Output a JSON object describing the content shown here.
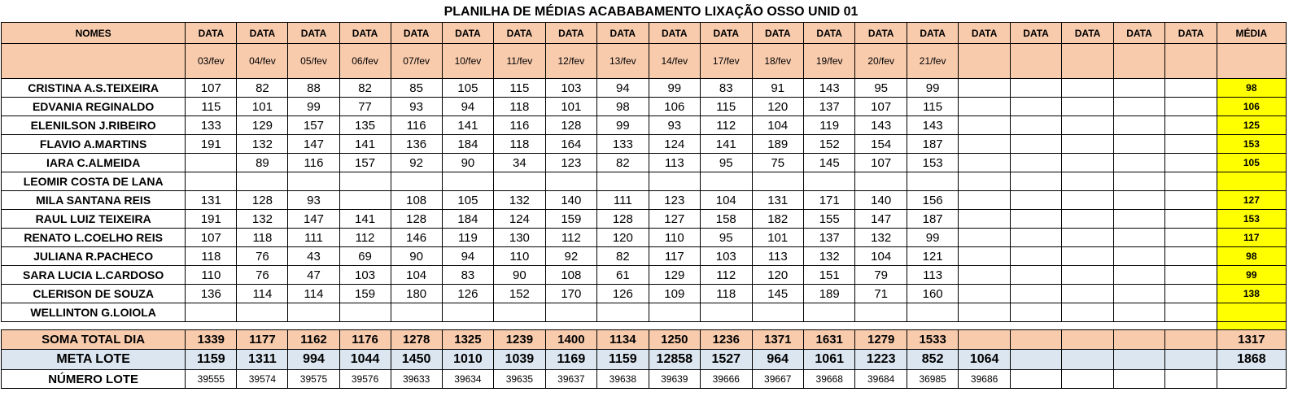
{
  "title": "PLANILHA DE MÉDIAS ACABABAMENTO LIXAÇÃO OSSO UNID 01",
  "header": {
    "names_label": "NOMES",
    "data_label": "DATA",
    "media_label": "MÉDIA",
    "dates": [
      "03/fev",
      "04/fev",
      "05/fev",
      "06/fev",
      "07/fev",
      "10/fev",
      "11/fev",
      "12/fev",
      "13/fev",
      "14/fev",
      "17/fev",
      "18/fev",
      "19/fev",
      "20/fev",
      "21/fev",
      "",
      "",
      "",
      "",
      ""
    ]
  },
  "rows": [
    {
      "name": "CRISTINA A.S.TEIXEIRA",
      "values": [
        "107",
        "82",
        "88",
        "82",
        "85",
        "105",
        "115",
        "103",
        "94",
        "99",
        "83",
        "91",
        "143",
        "95",
        "99",
        "",
        "",
        "",
        "",
        ""
      ],
      "avg": "98"
    },
    {
      "name": "EDVANIA REGINALDO",
      "values": [
        "115",
        "101",
        "99",
        "77",
        "93",
        "94",
        "118",
        "101",
        "98",
        "106",
        "115",
        "120",
        "137",
        "107",
        "115",
        "",
        "",
        "",
        "",
        ""
      ],
      "avg": "106"
    },
    {
      "name": "ELENILSON J.RIBEIRO",
      "values": [
        "133",
        "129",
        "157",
        "135",
        "116",
        "141",
        "116",
        "128",
        "99",
        "93",
        "112",
        "104",
        "119",
        "143",
        "143",
        "",
        "",
        "",
        "",
        ""
      ],
      "avg": "125"
    },
    {
      "name": "FLAVIO A.MARTINS",
      "values": [
        "191",
        "132",
        "147",
        "141",
        "136",
        "184",
        "118",
        "164",
        "133",
        "124",
        "141",
        "189",
        "152",
        "154",
        "187",
        "",
        "",
        "",
        "",
        ""
      ],
      "avg": "153"
    },
    {
      "name": "IARA C.ALMEIDA",
      "values": [
        "",
        "89",
        "116",
        "157",
        "92",
        "90",
        "34",
        "123",
        "82",
        "113",
        "95",
        "75",
        "145",
        "107",
        "153",
        "",
        "",
        "",
        "",
        ""
      ],
      "avg": "105"
    },
    {
      "name": "LEOMIR COSTA DE LANA",
      "values": [
        "",
        "",
        "",
        "",
        "",
        "",
        "",
        "",
        "",
        "",
        "",
        "",
        "",
        "",
        "",
        "",
        "",
        "",
        "",
        ""
      ],
      "avg": ""
    },
    {
      "name": "MILA SANTANA REIS",
      "values": [
        "131",
        "128",
        "93",
        "",
        "108",
        "105",
        "132",
        "140",
        "111",
        "123",
        "104",
        "131",
        "171",
        "140",
        "156",
        "",
        "",
        "",
        "",
        ""
      ],
      "avg": "127"
    },
    {
      "name": "RAUL LUIZ TEIXEIRA",
      "values": [
        "191",
        "132",
        "147",
        "141",
        "128",
        "184",
        "124",
        "159",
        "128",
        "127",
        "158",
        "182",
        "155",
        "147",
        "187",
        "",
        "",
        "",
        "",
        ""
      ],
      "avg": "153"
    },
    {
      "name": "RENATO L.COELHO REIS",
      "values": [
        "107",
        "118",
        "111",
        "112",
        "146",
        "119",
        "130",
        "112",
        "120",
        "110",
        "95",
        "101",
        "137",
        "132",
        "99",
        "",
        "",
        "",
        "",
        ""
      ],
      "avg": "117"
    },
    {
      "name": "JULIANA R.PACHECO",
      "values": [
        "118",
        "76",
        "43",
        "69",
        "90",
        "94",
        "110",
        "92",
        "82",
        "117",
        "103",
        "113",
        "132",
        "104",
        "121",
        "",
        "",
        "",
        "",
        ""
      ],
      "avg": "98"
    },
    {
      "name": "SARA LUCIA L.CARDOSO",
      "values": [
        "110",
        "76",
        "47",
        "103",
        "104",
        "83",
        "90",
        "108",
        "61",
        "129",
        "112",
        "120",
        "151",
        "79",
        "113",
        "",
        "",
        "",
        "",
        ""
      ],
      "avg": "99"
    },
    {
      "name": "CLERISON DE SOUZA",
      "values": [
        "136",
        "114",
        "114",
        "159",
        "180",
        "126",
        "152",
        "170",
        "126",
        "109",
        "118",
        "145",
        "189",
        "71",
        "160",
        "",
        "",
        "",
        "",
        ""
      ],
      "avg": "138"
    },
    {
      "name": "WELLINTON G.LOIOLA",
      "values": [
        "",
        "",
        "",
        "",
        "",
        "",
        "",
        "",
        "",
        "",
        "",
        "",
        "",
        "",
        "",
        "",
        "",
        "",
        "",
        ""
      ],
      "avg": ""
    }
  ],
  "soma": {
    "label": "SOMA TOTAL DIA",
    "values": [
      "1339",
      "1177",
      "1162",
      "1176",
      "1278",
      "1325",
      "1239",
      "1400",
      "1134",
      "1250",
      "1236",
      "1371",
      "1631",
      "1279",
      "1533",
      "",
      "",
      "",
      "",
      ""
    ],
    "avg": "1317"
  },
  "meta": {
    "label": "META LOTE",
    "values": [
      "1159",
      "1311",
      "994",
      "1044",
      "1450",
      "1010",
      "1039",
      "1169",
      "1159",
      "12858",
      "1527",
      "964",
      "1061",
      "1223",
      "852",
      "1064",
      "",
      "",
      "",
      ""
    ],
    "avg": "1868"
  },
  "lote": {
    "label": "NÚMERO LOTE",
    "values": [
      "39555",
      "39574",
      "39575",
      "39576",
      "39633",
      "39634",
      "39635",
      "39637",
      "39638",
      "39639",
      "39666",
      "39667",
      "39668",
      "39684",
      "36985",
      "39686",
      "",
      "",
      "",
      ""
    ],
    "avg": ""
  },
  "colors": {
    "header_bg": "#f8cbad",
    "avg_bg": "#ffff00",
    "meta_bg": "#dce6f1"
  }
}
